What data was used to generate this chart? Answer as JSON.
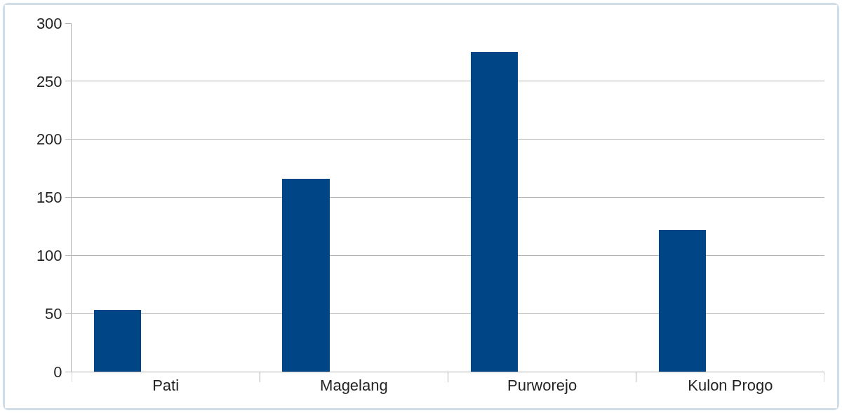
{
  "chart_data": {
    "type": "bar",
    "categories": [
      "Pati",
      "Magelang",
      "Purworejo",
      "Kulon Progo"
    ],
    "values": [
      53,
      166,
      275,
      122
    ],
    "color": "#004586",
    "ylim": [
      0,
      300
    ],
    "yticks": [
      0,
      50,
      100,
      150,
      200,
      250,
      300
    ],
    "grid": "y"
  }
}
